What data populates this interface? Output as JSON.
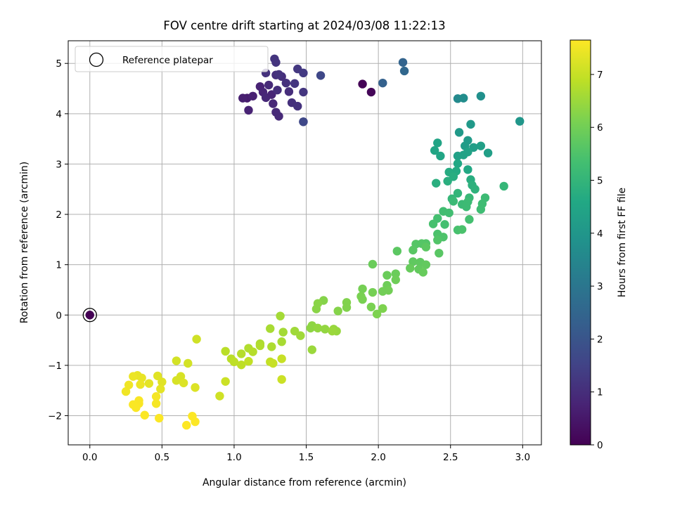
{
  "chart_data": {
    "type": "scatter",
    "title": "FOV centre drift starting at 2024/03/08 11:22:13",
    "xlabel": "Angular distance from reference (arcmin)",
    "ylabel": "Rotation from reference (arcmin)",
    "xlim": [
      -0.15,
      3.13
    ],
    "ylim": [
      -2.58,
      5.45
    ],
    "x_ticks": [
      0.0,
      0.5,
      1.0,
      1.5,
      2.0,
      2.5,
      3.0
    ],
    "x_tick_labels": [
      "0.0",
      "0.5",
      "1.0",
      "1.5",
      "2.0",
      "2.5",
      "3.0"
    ],
    "y_ticks": [
      -2,
      -1,
      0,
      1,
      2,
      3,
      4,
      5
    ],
    "y_tick_labels": [
      "−2",
      "−1",
      "0",
      "1",
      "2",
      "3",
      "4",
      "5"
    ],
    "grid": true,
    "legend": {
      "position": "top-left",
      "entries": [
        "Reference platepar"
      ]
    },
    "colorbar": {
      "label": "Hours from first FF file",
      "range": [
        0,
        7.65
      ],
      "ticks": [
        0,
        1,
        2,
        3,
        4,
        5,
        6,
        7
      ],
      "tick_labels": [
        "0",
        "1",
        "2",
        "3",
        "4",
        "5",
        "6",
        "7"
      ],
      "colormap": "viridis"
    },
    "reference_point": {
      "x": 0.0,
      "y": 0.0
    },
    "series": [
      {
        "values": [
          {
            "x": 0.0,
            "y": 0.0,
            "h": 0.0
          },
          {
            "x": 1.89,
            "y": 4.59,
            "h": 0.05
          },
          {
            "x": 1.95,
            "y": 4.43,
            "h": 0.1
          },
          {
            "x": 1.09,
            "y": 4.31,
            "h": 0.6
          },
          {
            "x": 1.13,
            "y": 4.35,
            "h": 0.7
          },
          {
            "x": 1.1,
            "y": 4.07,
            "h": 0.75
          },
          {
            "x": 1.06,
            "y": 4.31,
            "h": 0.65
          },
          {
            "x": 1.18,
            "y": 4.54,
            "h": 0.75
          },
          {
            "x": 1.2,
            "y": 4.43,
            "h": 0.8
          },
          {
            "x": 1.22,
            "y": 4.32,
            "h": 0.85
          },
          {
            "x": 1.24,
            "y": 4.57,
            "h": 0.9
          },
          {
            "x": 1.26,
            "y": 4.38,
            "h": 0.8
          },
          {
            "x": 1.27,
            "y": 4.2,
            "h": 0.85
          },
          {
            "x": 1.29,
            "y": 4.03,
            "h": 0.9
          },
          {
            "x": 1.31,
            "y": 3.95,
            "h": 0.9
          },
          {
            "x": 1.3,
            "y": 4.47,
            "h": 1.0
          },
          {
            "x": 1.33,
            "y": 4.74,
            "h": 1.0
          },
          {
            "x": 1.36,
            "y": 4.61,
            "h": 1.05
          },
          {
            "x": 1.38,
            "y": 4.44,
            "h": 1.0
          },
          {
            "x": 1.4,
            "y": 4.22,
            "h": 1.05
          },
          {
            "x": 1.44,
            "y": 4.15,
            "h": 1.1
          },
          {
            "x": 1.29,
            "y": 4.77,
            "h": 1.0
          },
          {
            "x": 1.31,
            "y": 4.78,
            "h": 1.1
          },
          {
            "x": 1.28,
            "y": 5.09,
            "h": 1.15
          },
          {
            "x": 1.29,
            "y": 5.02,
            "h": 1.15
          },
          {
            "x": 1.22,
            "y": 4.81,
            "h": 1.1
          },
          {
            "x": 1.42,
            "y": 4.6,
            "h": 1.2
          },
          {
            "x": 1.44,
            "y": 4.89,
            "h": 1.25
          },
          {
            "x": 1.48,
            "y": 4.81,
            "h": 1.3
          },
          {
            "x": 1.48,
            "y": 4.43,
            "h": 1.2
          },
          {
            "x": 1.48,
            "y": 3.84,
            "h": 1.55
          },
          {
            "x": 1.48,
            "y": 3.84,
            "h": 1.65
          },
          {
            "x": 1.6,
            "y": 4.76,
            "h": 1.65
          },
          {
            "x": 2.03,
            "y": 4.61,
            "h": 2.35
          },
          {
            "x": 2.17,
            "y": 5.02,
            "h": 2.45
          },
          {
            "x": 2.18,
            "y": 4.85,
            "h": 2.55
          },
          {
            "x": 2.55,
            "y": 4.3,
            "h": 3.6
          },
          {
            "x": 2.59,
            "y": 4.31,
            "h": 3.7
          },
          {
            "x": 2.71,
            "y": 4.35,
            "h": 3.8
          },
          {
            "x": 2.98,
            "y": 3.85,
            "h": 4.0
          },
          {
            "x": 2.64,
            "y": 3.79,
            "h": 4.1
          },
          {
            "x": 2.56,
            "y": 3.63,
            "h": 4.1
          },
          {
            "x": 2.62,
            "y": 3.47,
            "h": 4.15
          },
          {
            "x": 2.6,
            "y": 3.36,
            "h": 4.2
          },
          {
            "x": 2.66,
            "y": 3.33,
            "h": 4.25
          },
          {
            "x": 2.71,
            "y": 3.36,
            "h": 4.3
          },
          {
            "x": 2.76,
            "y": 3.22,
            "h": 4.3
          },
          {
            "x": 2.55,
            "y": 3.16,
            "h": 4.35
          },
          {
            "x": 2.59,
            "y": 3.18,
            "h": 4.4
          },
          {
            "x": 2.62,
            "y": 3.24,
            "h": 4.4
          },
          {
            "x": 2.41,
            "y": 3.42,
            "h": 4.45
          },
          {
            "x": 2.39,
            "y": 3.27,
            "h": 4.5
          },
          {
            "x": 2.43,
            "y": 3.16,
            "h": 4.5
          },
          {
            "x": 2.55,
            "y": 3.01,
            "h": 4.55
          },
          {
            "x": 2.62,
            "y": 2.89,
            "h": 4.6
          },
          {
            "x": 2.54,
            "y": 2.86,
            "h": 4.65
          },
          {
            "x": 2.49,
            "y": 2.84,
            "h": 4.7
          },
          {
            "x": 2.52,
            "y": 2.75,
            "h": 4.75
          },
          {
            "x": 2.64,
            "y": 2.69,
            "h": 4.75
          },
          {
            "x": 2.4,
            "y": 2.62,
            "h": 4.8
          },
          {
            "x": 2.48,
            "y": 2.66,
            "h": 4.8
          },
          {
            "x": 2.65,
            "y": 2.58,
            "h": 4.85
          },
          {
            "x": 2.67,
            "y": 2.5,
            "h": 4.9
          },
          {
            "x": 2.87,
            "y": 2.56,
            "h": 5.05
          },
          {
            "x": 2.55,
            "y": 2.42,
            "h": 5.0
          },
          {
            "x": 2.51,
            "y": 2.31,
            "h": 5.05
          },
          {
            "x": 2.63,
            "y": 2.33,
            "h": 5.1
          },
          {
            "x": 2.52,
            "y": 2.26,
            "h": 5.15
          },
          {
            "x": 2.58,
            "y": 2.2,
            "h": 5.15
          },
          {
            "x": 2.62,
            "y": 2.25,
            "h": 5.2
          },
          {
            "x": 2.61,
            "y": 2.15,
            "h": 5.2
          },
          {
            "x": 2.74,
            "y": 2.33,
            "h": 5.2
          },
          {
            "x": 2.72,
            "y": 2.21,
            "h": 5.25
          },
          {
            "x": 2.71,
            "y": 2.1,
            "h": 5.25
          },
          {
            "x": 2.45,
            "y": 2.06,
            "h": 5.3
          },
          {
            "x": 2.49,
            "y": 2.03,
            "h": 5.3
          },
          {
            "x": 2.41,
            "y": 1.92,
            "h": 5.35
          },
          {
            "x": 2.63,
            "y": 1.9,
            "h": 5.35
          },
          {
            "x": 2.46,
            "y": 1.8,
            "h": 5.35
          },
          {
            "x": 2.38,
            "y": 1.81,
            "h": 5.4
          },
          {
            "x": 2.55,
            "y": 1.69,
            "h": 5.4
          },
          {
            "x": 2.58,
            "y": 1.7,
            "h": 5.45
          },
          {
            "x": 2.41,
            "y": 1.61,
            "h": 5.45
          },
          {
            "x": 2.42,
            "y": 1.55,
            "h": 5.5
          },
          {
            "x": 2.45,
            "y": 1.55,
            "h": 5.5
          },
          {
            "x": 2.41,
            "y": 1.49,
            "h": 5.55
          },
          {
            "x": 2.33,
            "y": 1.42,
            "h": 5.55
          },
          {
            "x": 2.26,
            "y": 1.41,
            "h": 5.6
          },
          {
            "x": 2.3,
            "y": 1.42,
            "h": 5.6
          },
          {
            "x": 2.24,
            "y": 1.29,
            "h": 5.65
          },
          {
            "x": 2.42,
            "y": 1.23,
            "h": 5.65
          },
          {
            "x": 2.13,
            "y": 1.27,
            "h": 5.7
          },
          {
            "x": 2.33,
            "y": 1.35,
            "h": 5.7
          },
          {
            "x": 2.24,
            "y": 1.06,
            "h": 5.75
          },
          {
            "x": 2.29,
            "y": 1.05,
            "h": 5.75
          },
          {
            "x": 2.33,
            "y": 1.0,
            "h": 5.8
          },
          {
            "x": 2.28,
            "y": 0.91,
            "h": 5.8
          },
          {
            "x": 2.31,
            "y": 0.85,
            "h": 5.85
          },
          {
            "x": 2.22,
            "y": 0.93,
            "h": 5.85
          },
          {
            "x": 2.06,
            "y": 0.79,
            "h": 5.9
          },
          {
            "x": 2.12,
            "y": 0.82,
            "h": 5.9
          },
          {
            "x": 2.12,
            "y": 0.7,
            "h": 5.95
          },
          {
            "x": 1.96,
            "y": 1.01,
            "h": 5.9
          },
          {
            "x": 2.06,
            "y": 0.59,
            "h": 5.95
          },
          {
            "x": 2.07,
            "y": 0.49,
            "h": 6.0
          },
          {
            "x": 2.03,
            "y": 0.47,
            "h": 6.0
          },
          {
            "x": 1.89,
            "y": 0.52,
            "h": 6.05
          },
          {
            "x": 1.96,
            "y": 0.45,
            "h": 6.05
          },
          {
            "x": 1.88,
            "y": 0.37,
            "h": 6.1
          },
          {
            "x": 1.89,
            "y": 0.31,
            "h": 6.1
          },
          {
            "x": 1.95,
            "y": 0.16,
            "h": 6.1
          },
          {
            "x": 2.03,
            "y": 0.13,
            "h": 6.15
          },
          {
            "x": 1.99,
            "y": 0.02,
            "h": 6.15
          },
          {
            "x": 1.78,
            "y": 0.25,
            "h": 6.2
          },
          {
            "x": 1.78,
            "y": 0.15,
            "h": 6.2
          },
          {
            "x": 1.72,
            "y": 0.08,
            "h": 6.25
          },
          {
            "x": 1.62,
            "y": 0.29,
            "h": 6.25
          },
          {
            "x": 1.58,
            "y": 0.23,
            "h": 6.3
          },
          {
            "x": 1.57,
            "y": 0.12,
            "h": 6.3
          },
          {
            "x": 1.54,
            "y": -0.21,
            "h": 6.35
          },
          {
            "x": 1.53,
            "y": -0.26,
            "h": 6.35
          },
          {
            "x": 1.58,
            "y": -0.26,
            "h": 6.4
          },
          {
            "x": 1.63,
            "y": -0.28,
            "h": 6.4
          },
          {
            "x": 1.69,
            "y": -0.28,
            "h": 6.45
          },
          {
            "x": 1.71,
            "y": -0.32,
            "h": 6.45
          },
          {
            "x": 1.68,
            "y": -0.32,
            "h": 6.5
          },
          {
            "x": 1.54,
            "y": -0.69,
            "h": 6.5
          },
          {
            "x": 1.42,
            "y": -0.32,
            "h": 6.55
          },
          {
            "x": 1.46,
            "y": -0.41,
            "h": 6.55
          },
          {
            "x": 1.34,
            "y": -0.34,
            "h": 6.6
          },
          {
            "x": 1.32,
            "y": -0.02,
            "h": 6.6
          },
          {
            "x": 1.25,
            "y": -0.27,
            "h": 6.65
          },
          {
            "x": 1.33,
            "y": -0.53,
            "h": 6.65
          },
          {
            "x": 1.26,
            "y": -0.63,
            "h": 6.7
          },
          {
            "x": 1.18,
            "y": -0.57,
            "h": 6.7
          },
          {
            "x": 1.18,
            "y": -0.61,
            "h": 6.75
          },
          {
            "x": 1.1,
            "y": -0.66,
            "h": 6.75
          },
          {
            "x": 1.13,
            "y": -0.73,
            "h": 6.8
          },
          {
            "x": 1.05,
            "y": -0.77,
            "h": 6.8
          },
          {
            "x": 0.94,
            "y": -0.72,
            "h": 6.85
          },
          {
            "x": 0.98,
            "y": -0.87,
            "h": 6.85
          },
          {
            "x": 1.0,
            "y": -0.93,
            "h": 6.9
          },
          {
            "x": 1.05,
            "y": -0.99,
            "h": 6.9
          },
          {
            "x": 1.1,
            "y": -0.92,
            "h": 6.95
          },
          {
            "x": 1.25,
            "y": -0.93,
            "h": 6.95
          },
          {
            "x": 1.27,
            "y": -0.96,
            "h": 7.0
          },
          {
            "x": 1.33,
            "y": -0.87,
            "h": 7.0
          },
          {
            "x": 1.33,
            "y": -1.28,
            "h": 7.05
          },
          {
            "x": 0.94,
            "y": -1.32,
            "h": 7.05
          },
          {
            "x": 0.9,
            "y": -1.61,
            "h": 7.1
          },
          {
            "x": 0.74,
            "y": -0.48,
            "h": 7.1
          },
          {
            "x": 0.6,
            "y": -0.91,
            "h": 7.15
          },
          {
            "x": 0.68,
            "y": -0.96,
            "h": 7.15
          },
          {
            "x": 0.6,
            "y": -1.3,
            "h": 7.2
          },
          {
            "x": 0.63,
            "y": -1.22,
            "h": 7.2
          },
          {
            "x": 0.65,
            "y": -1.35,
            "h": 7.25
          },
          {
            "x": 0.73,
            "y": -1.44,
            "h": 7.25
          },
          {
            "x": 0.47,
            "y": -1.21,
            "h": 7.3
          },
          {
            "x": 0.5,
            "y": -1.33,
            "h": 7.3
          },
          {
            "x": 0.49,
            "y": -1.47,
            "h": 7.35
          },
          {
            "x": 0.41,
            "y": -1.36,
            "h": 7.35
          },
          {
            "x": 0.33,
            "y": -1.2,
            "h": 7.4
          },
          {
            "x": 0.36,
            "y": -1.25,
            "h": 7.4
          },
          {
            "x": 0.3,
            "y": -1.22,
            "h": 7.45
          },
          {
            "x": 0.35,
            "y": -1.38,
            "h": 7.45
          },
          {
            "x": 0.27,
            "y": -1.39,
            "h": 7.5
          },
          {
            "x": 0.25,
            "y": -1.52,
            "h": 7.5
          },
          {
            "x": 0.46,
            "y": -1.62,
            "h": 7.55
          },
          {
            "x": 0.46,
            "y": -1.76,
            "h": 7.55
          },
          {
            "x": 0.34,
            "y": -1.7,
            "h": 7.6
          },
          {
            "x": 0.34,
            "y": -1.76,
            "h": 7.6
          },
          {
            "x": 0.3,
            "y": -1.78,
            "h": 7.62
          },
          {
            "x": 0.32,
            "y": -1.84,
            "h": 7.62
          },
          {
            "x": 0.38,
            "y": -1.99,
            "h": 7.63
          },
          {
            "x": 0.48,
            "y": -2.05,
            "h": 7.63
          },
          {
            "x": 0.71,
            "y": -2.01,
            "h": 7.64
          },
          {
            "x": 0.73,
            "y": -2.12,
            "h": 7.64
          },
          {
            "x": 0.67,
            "y": -2.19,
            "h": 7.65
          }
        ]
      }
    ]
  }
}
